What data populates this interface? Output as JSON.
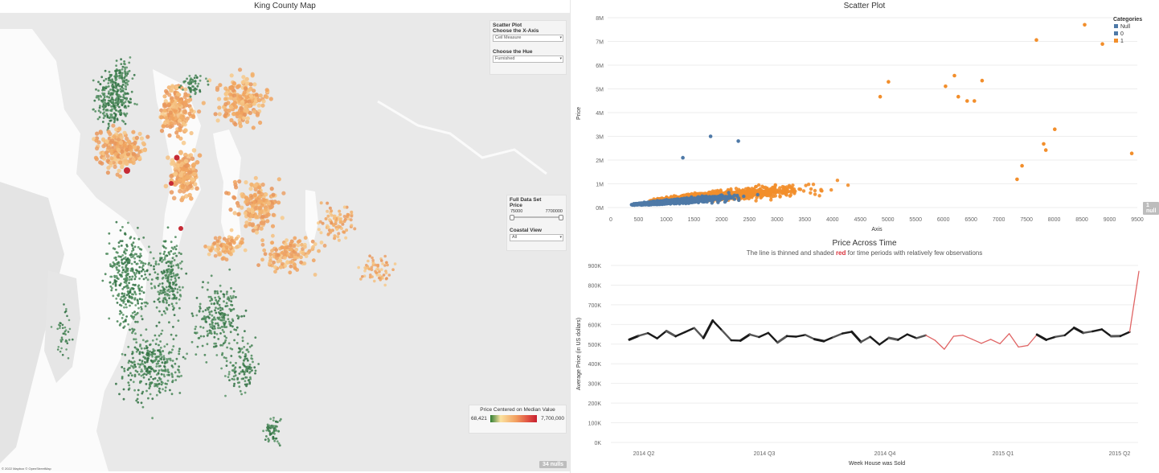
{
  "map": {
    "title": "King County Map",
    "controls": {
      "scatter_heading": "Scatter Plot",
      "xaxis_label": "Choose the X-Axis",
      "xaxis_value": "Ceil Measure",
      "hue_label": "Choose the Hue",
      "hue_value": "Furnished",
      "dataset_heading": "Full Data Set",
      "price_label": "Price",
      "price_min": "75000",
      "price_max": "7700000",
      "coastal_label": "Coastal View",
      "coastal_value": "All"
    },
    "legend": {
      "title": "Price Centered on Median Value",
      "min": "68,421",
      "max": "7,700,000"
    },
    "nulls": "34 nulls",
    "copyright": "© 2022 Mapbox © OpenStreetMap"
  },
  "scatter": {
    "title": "Scatter Plot",
    "legend_title": "Categories",
    "nulls": "1 null",
    "colors": {
      "null": "#4e79a7",
      "zero": "#4e79a7",
      "one": "#f28e2b"
    }
  },
  "time": {
    "title": "Price Across Time",
    "subtitle_pre": "The line is thinned and shaded ",
    "subtitle_red": "red",
    "subtitle_post": " for time periods with relatively few observations"
  },
  "chart_data": [
    {
      "type": "scatter",
      "title": "Scatter Plot",
      "xlabel": "Axis",
      "ylabel": "Price",
      "xlim": [
        0,
        9500
      ],
      "ylim": [
        0,
        8000000
      ],
      "x_ticks": [
        "0",
        "500",
        "1000",
        "1500",
        "2000",
        "2500",
        "3000",
        "3500",
        "4000",
        "4500",
        "5000",
        "5500",
        "6000",
        "6500",
        "7000",
        "7500",
        "8000",
        "8500",
        "9000",
        "9500"
      ],
      "y_ticks": [
        "0M",
        "1M",
        "2M",
        "3M",
        "4M",
        "5M",
        "6M",
        "7M",
        "8M"
      ],
      "legend": [
        "Null",
        "0",
        "1"
      ],
      "legend_position": "top-right",
      "outliers": [
        {
          "series": "1",
          "x": 8550,
          "y": 7700000
        },
        {
          "series": "1",
          "x": 7680,
          "y": 7060000
        },
        {
          "series": "1",
          "x": 8870,
          "y": 6890000
        },
        {
          "series": "1",
          "x": 6200,
          "y": 5560000
        },
        {
          "series": "1",
          "x": 6700,
          "y": 5350000
        },
        {
          "series": "1",
          "x": 5010,
          "y": 5300000
        },
        {
          "series": "1",
          "x": 6040,
          "y": 5110000
        },
        {
          "series": "1",
          "x": 6270,
          "y": 4670000
        },
        {
          "series": "1",
          "x": 6430,
          "y": 4490000
        },
        {
          "series": "1",
          "x": 6560,
          "y": 4490000
        },
        {
          "series": "1",
          "x": 4860,
          "y": 4670000
        },
        {
          "series": "1",
          "x": 8010,
          "y": 3300000
        },
        {
          "series": "1",
          "x": 7810,
          "y": 2680000
        },
        {
          "series": "1",
          "x": 7850,
          "y": 2420000
        },
        {
          "series": "1",
          "x": 7420,
          "y": 1760000
        },
        {
          "series": "1",
          "x": 7330,
          "y": 1190000
        },
        {
          "series": "1",
          "x": 9400,
          "y": 2280000
        },
        {
          "series": "0",
          "x": 1800,
          "y": 3000000
        },
        {
          "series": "0",
          "x": 2300,
          "y": 2800000
        },
        {
          "series": "0",
          "x": 1300,
          "y": 2100000
        }
      ]
    },
    {
      "type": "line",
      "title": "Price Across Time",
      "xlabel": "Week House was Sold",
      "ylabel": "Average Price (in US dollars)",
      "ylim": [
        0,
        900000
      ],
      "y_ticks": [
        "0K",
        "100K",
        "200K",
        "300K",
        "400K",
        "500K",
        "600K",
        "700K",
        "800K",
        "900K"
      ],
      "x_ticks": [
        "2014 Q2",
        "2014 Q3",
        "2014 Q4",
        "2015 Q1",
        "2015 Q2"
      ],
      "values": [
        523000,
        542000,
        556000,
        529000,
        567000,
        540000,
        561000,
        582000,
        531000,
        620000,
        570000,
        519000,
        518000,
        549000,
        536000,
        557000,
        508000,
        541000,
        538000,
        547000,
        525000,
        515000,
        535000,
        554000,
        563000,
        511000,
        537000,
        498000,
        532000,
        522000,
        550000,
        530000,
        545000,
        519000,
        474000,
        540000,
        545000,
        525000,
        504000,
        524000,
        502000,
        553000,
        485000,
        493000,
        548000,
        522000,
        537000,
        545000,
        583000,
        557000,
        565000,
        575000,
        540000,
        541000,
        562000,
        870000
      ],
      "thin_red_indices": [
        32,
        33,
        34,
        35,
        36,
        37,
        38,
        39,
        40,
        41,
        42,
        43,
        54
      ]
    }
  ]
}
